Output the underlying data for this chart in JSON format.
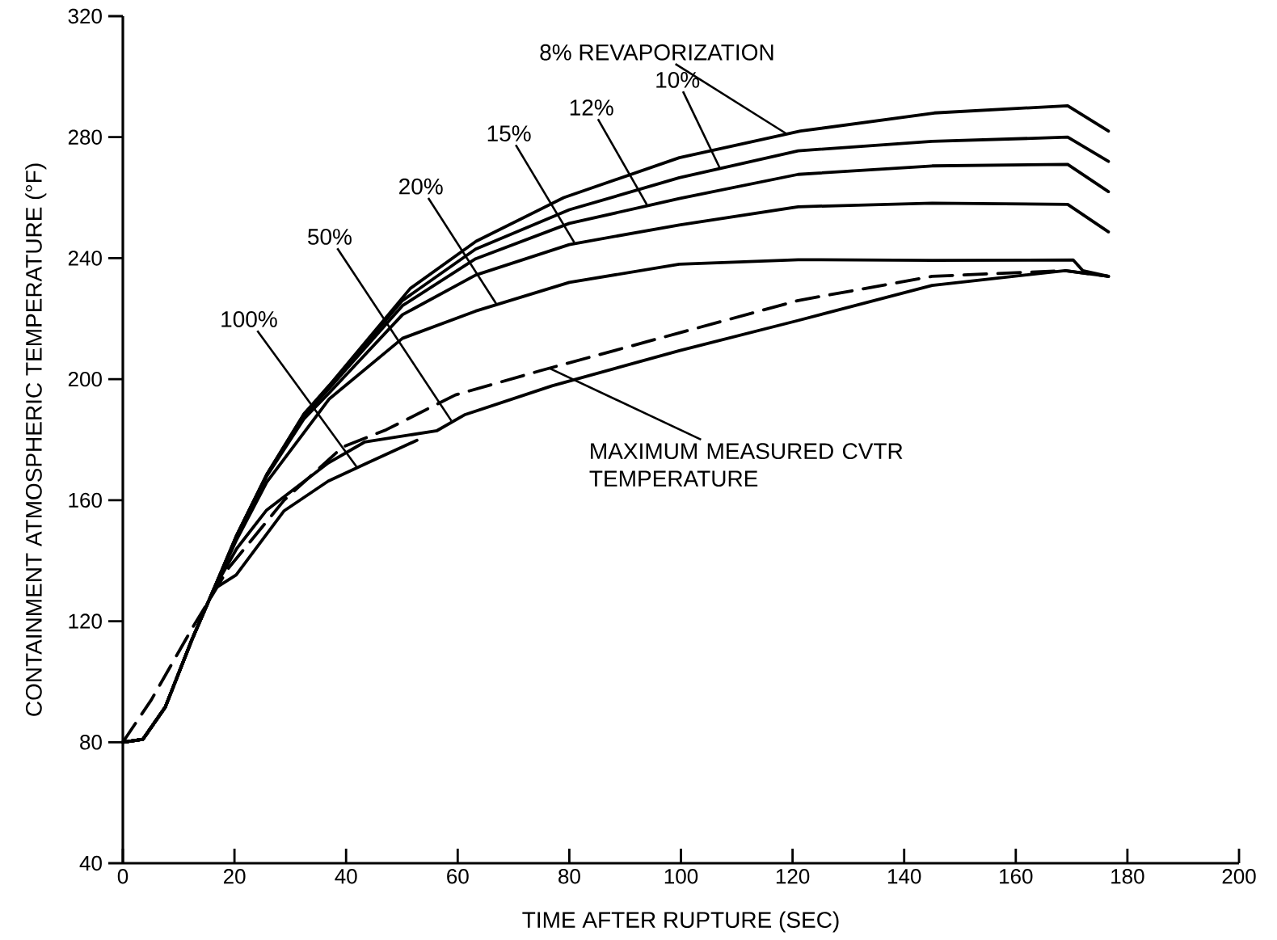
{
  "chart_data": {
    "type": "line",
    "xlabel": "TIME AFTER RUPTURE (SEC)",
    "ylabel": "CONTAINMENT ATMOSPHERIC TEMPERATURE (°F)",
    "xlim": [
      0,
      200
    ],
    "ylim": [
      40,
      320
    ],
    "xticks": [
      0,
      20,
      40,
      60,
      80,
      100,
      120,
      140,
      160,
      180,
      200
    ],
    "yticks": [
      40,
      80,
      120,
      160,
      200,
      240,
      280,
      320
    ],
    "legend": false,
    "grid": false,
    "marker": "none",
    "series": [
      {
        "name": "8% REVAPORIZATION",
        "color": "#000000",
        "line_style": "solid",
        "x": [
          0,
          3.6,
          7.6,
          12.4,
          16.3,
          20.4,
          25.8,
          32.5,
          37,
          51.5,
          63.3,
          79,
          99.7,
          121.4,
          145.4,
          169.3,
          176.6
        ],
        "values": [
          80,
          81,
          91.6,
          114,
          130.6,
          148.4,
          168.5,
          188.6,
          198,
          230,
          245.6,
          260,
          273.2,
          282,
          288,
          290.4,
          282
        ]
      },
      {
        "name": "10%",
        "color": "#000000",
        "line_style": "solid",
        "x": [
          0,
          3.6,
          7.6,
          12.4,
          16.3,
          20.4,
          25.8,
          32.5,
          37,
          50.1,
          63.2,
          80,
          99.7,
          121,
          145,
          169.3,
          176.6
        ],
        "values": [
          80,
          81,
          91.6,
          114,
          130.6,
          148.4,
          168.5,
          188.6,
          197.5,
          226,
          243,
          256,
          266.6,
          275.5,
          278.6,
          280,
          272
        ]
      },
      {
        "name": "12%",
        "color": "#000000",
        "line_style": "solid",
        "x": [
          0,
          3.6,
          7.6,
          12.4,
          16.3,
          20.4,
          25.8,
          32.5,
          37,
          50.1,
          63.2,
          80,
          99.7,
          121,
          145,
          169.3,
          176.6
        ],
        "values": [
          80,
          81,
          91.6,
          114,
          130.6,
          148.4,
          168.5,
          188,
          197,
          224.3,
          239.8,
          251.5,
          259.7,
          267.7,
          270.5,
          271,
          262
        ]
      },
      {
        "name": "15%",
        "color": "#000000",
        "line_style": "solid",
        "x": [
          0,
          3.6,
          7.6,
          12.4,
          16.3,
          20.4,
          25.8,
          32.5,
          37,
          50.1,
          63.2,
          80,
          99.7,
          121,
          145,
          169.3,
          176.6
        ],
        "values": [
          80,
          81,
          91.6,
          114,
          130.6,
          148,
          168,
          187,
          195.5,
          221.3,
          234.4,
          244.5,
          251,
          257,
          258.2,
          257.8,
          248.7
        ]
      },
      {
        "name": "20%",
        "color": "#000000",
        "line_style": "solid",
        "x": [
          0,
          3.6,
          7.6,
          12.4,
          16.3,
          20.4,
          25.8,
          37,
          50.1,
          63.2,
          80,
          99.7,
          121,
          145,
          170.3,
          172,
          176.6
        ],
        "values": [
          80,
          81,
          91.6,
          114,
          130.6,
          147,
          166,
          193.5,
          213.5,
          222.5,
          232,
          238,
          239.5,
          239.3,
          239.4,
          235.9,
          234
        ]
      },
      {
        "name": "50%",
        "color": "#000000",
        "line_style": "solid",
        "x": [
          0,
          3.6,
          7.6,
          12.4,
          16.3,
          20.4,
          25.7,
          36.8,
          43.3,
          56.3,
          61.2,
          76.9,
          99.7,
          121,
          145,
          168.8,
          176.6
        ],
        "values": [
          80,
          81,
          91.6,
          114,
          130.6,
          144,
          156.6,
          172.3,
          179.2,
          183,
          188.2,
          197.8,
          209.4,
          219.4,
          231,
          235.9,
          234
        ]
      },
      {
        "name": "100%",
        "color": "#000000",
        "line_style": "solid",
        "x": [
          0,
          3.6,
          7.6,
          12.4,
          16.3,
          20.3,
          28.9,
          36.8,
          43.9,
          52.7
        ],
        "values": [
          80,
          81,
          91.6,
          114,
          130.6,
          135.3,
          156.5,
          166.3,
          172.4,
          179.8
        ]
      },
      {
        "color": "#000000",
        "line_style": "dashed",
        "x": [
          0,
          5.1,
          12.4,
          19,
          28.9,
          39.4,
          47.2,
          59.6,
          74.6,
          99.7,
          121,
          145,
          168.8,
          176.6
        ],
        "values": [
          80,
          94,
          117.6,
          137.7,
          160,
          177.6,
          183.3,
          194.8,
          202.7,
          215.3,
          226,
          234,
          235.9,
          234
        ]
      }
    ],
    "annotations": [
      {
        "text": "MAXIMUM MEASURED CVTR TEMPERATURE",
        "x": 76,
        "y": 204
      }
    ]
  }
}
